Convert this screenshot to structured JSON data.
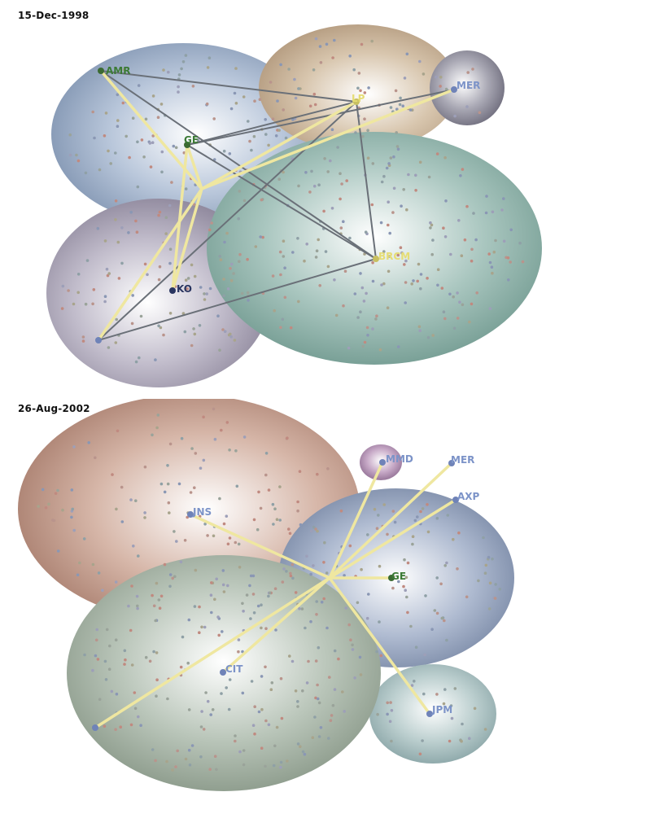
{
  "panels": [
    {
      "date": "15-Dec-1998",
      "labels": {
        "AMR": "AMR",
        "GE": "GE",
        "LP": "LP",
        "MER": "MER",
        "BRCM": "BRCM",
        "KO": "KO"
      }
    },
    {
      "date": "26-Aug-2002",
      "labels": {
        "MMD": "MMD",
        "MER": "MER",
        "AXP": "AXP",
        "JNS": "JNS",
        "GE": "GE",
        "CIT": "CIT",
        "JPM": "JPM"
      }
    }
  ],
  "colors": {
    "hub_edge": "#efe7a0",
    "link_edge": "#6a7078",
    "label_green": "#3b7a35",
    "label_blue": "#7c93c8",
    "label_yellow": "#e6dd74",
    "label_navy": "#2a3560"
  }
}
